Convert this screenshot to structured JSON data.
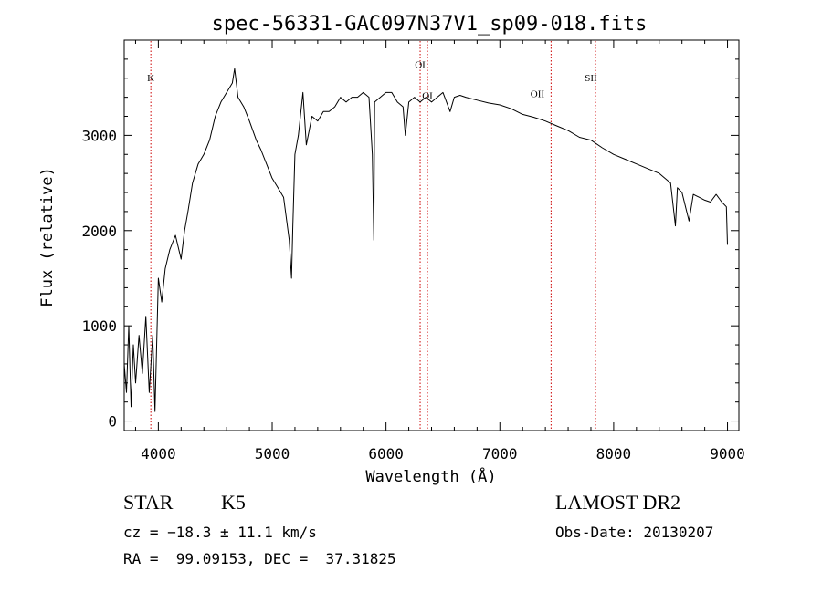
{
  "chart_data": {
    "type": "line",
    "title": "spec-56331-GAC097N37V1_sp09-018.fits",
    "xlabel": "Wavelength (Å)",
    "ylabel": "Flux (relative)",
    "xlim": [
      3700,
      9100
    ],
    "ylim": [
      -100,
      4000
    ],
    "x_ticks": [
      4000,
      5000,
      6000,
      7000,
      8000,
      9000
    ],
    "y_ticks": [
      0,
      1000,
      2000,
      3000
    ],
    "grid": false,
    "series": [
      {
        "name": "flux",
        "x": [
          3700,
          3720,
          3740,
          3760,
          3780,
          3800,
          3830,
          3860,
          3890,
          3920,
          3950,
          3970,
          4000,
          4030,
          4060,
          4100,
          4150,
          4200,
          4230,
          4260,
          4300,
          4350,
          4400,
          4450,
          4500,
          4550,
          4600,
          4650,
          4670,
          4700,
          4750,
          4800,
          4860,
          4900,
          4950,
          5000,
          5050,
          5100,
          5150,
          5170,
          5180,
          5200,
          5230,
          5270,
          5300,
          5350,
          5400,
          5450,
          5500,
          5550,
          5600,
          5650,
          5700,
          5750,
          5800,
          5850,
          5880,
          5893,
          5900,
          5950,
          6000,
          6050,
          6100,
          6150,
          6170,
          6200,
          6250,
          6300,
          6350,
          6400,
          6450,
          6500,
          6563,
          6600,
          6650,
          6700,
          6800,
          6900,
          7000,
          7100,
          7200,
          7300,
          7400,
          7500,
          7600,
          7700,
          7800,
          7900,
          8000,
          8100,
          8200,
          8300,
          8400,
          8500,
          8542,
          8560,
          8600,
          8662,
          8700,
          8750,
          8800,
          8850,
          8900,
          8950,
          8990,
          9000
        ],
        "y": [
          600,
          300,
          1000,
          150,
          800,
          400,
          900,
          500,
          1100,
          300,
          900,
          100,
          1500,
          1250,
          1600,
          1800,
          1950,
          1700,
          2000,
          2200,
          2500,
          2700,
          2800,
          2950,
          3200,
          3350,
          3450,
          3550,
          3700,
          3400,
          3300,
          3150,
          2950,
          2850,
          2700,
          2550,
          2450,
          2350,
          1900,
          1500,
          2000,
          2800,
          3000,
          3450,
          2900,
          3200,
          3150,
          3250,
          3250,
          3300,
          3400,
          3350,
          3400,
          3400,
          3450,
          3400,
          2800,
          1900,
          3350,
          3400,
          3450,
          3450,
          3350,
          3300,
          3000,
          3350,
          3400,
          3350,
          3400,
          3350,
          3400,
          3450,
          3250,
          3400,
          3420,
          3400,
          3370,
          3340,
          3320,
          3280,
          3220,
          3190,
          3150,
          3100,
          3050,
          2980,
          2950,
          2870,
          2800,
          2750,
          2700,
          2650,
          2600,
          2500,
          2050,
          2450,
          2400,
          2100,
          2380,
          2350,
          2320,
          2300,
          2380,
          2300,
          2250,
          1850
        ]
      }
    ],
    "annotations": [
      {
        "label": "K",
        "x": 3934,
        "y": 3570
      },
      {
        "label": "OI",
        "x": 6300,
        "y": 3710
      },
      {
        "label": "OI",
        "x": 6364,
        "y": 3380
      },
      {
        "label": "OII",
        "x": 7330,
        "y": 3400
      },
      {
        "label": "SII",
        "x": 7800,
        "y": 3570
      }
    ],
    "reference_lines": [
      3934,
      6300,
      6364,
      7450,
      7840
    ],
    "reference_line_color": "#cc0000"
  },
  "info": {
    "object_class": "STAR",
    "subclass": "K5",
    "survey": "LAMOST DR2",
    "cz_line": "cz = −18.3 ± 11.1 km/s",
    "obs_date_line": "Obs-Date: 20130207",
    "radec_line": "RA =  99.09153, DEC =  37.31825"
  }
}
